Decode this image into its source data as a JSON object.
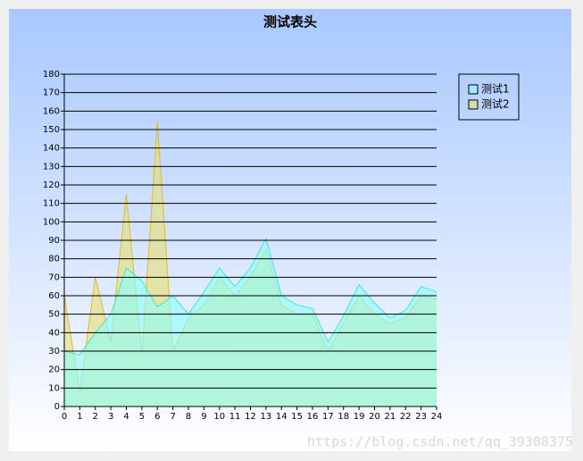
{
  "chart_data": {
    "type": "area",
    "title": "测试表头",
    "x": [
      0,
      1,
      2,
      3,
      4,
      5,
      6,
      7,
      8,
      9,
      10,
      11,
      12,
      13,
      14,
      15,
      16,
      17,
      18,
      19,
      20,
      21,
      22,
      23,
      24
    ],
    "series": [
      {
        "name": "测试1",
        "color": "#40e8c0",
        "fill": "#88ffff",
        "values": [
          30,
          28,
          40,
          50,
          75,
          68,
          54,
          60,
          50,
          62,
          75,
          65,
          75,
          91,
          60,
          55,
          53,
          35,
          49,
          66,
          56,
          48,
          52,
          65,
          62
        ]
      },
      {
        "name": "测试2",
        "color": "#e0b830",
        "fill": "#e8e070",
        "values": [
          60,
          8,
          70,
          35,
          115,
          28,
          154,
          30,
          48,
          55,
          70,
          60,
          70,
          85,
          55,
          50,
          50,
          30,
          45,
          60,
          50,
          45,
          48,
          60,
          58
        ]
      }
    ],
    "xlim": [
      0,
      24
    ],
    "xticks": [
      0,
      1,
      2,
      3,
      4,
      5,
      6,
      7,
      8,
      9,
      10,
      11,
      12,
      13,
      14,
      15,
      16,
      17,
      18,
      19,
      20,
      21,
      22,
      23,
      24
    ],
    "ylim": [
      0,
      180
    ],
    "yticks": [
      0,
      10,
      20,
      30,
      40,
      50,
      60,
      70,
      80,
      90,
      100,
      110,
      120,
      130,
      140,
      150,
      160,
      170,
      180
    ],
    "grid": true,
    "legend": "right",
    "watermark": "https://blog.csdn.net/qq_39308375"
  }
}
